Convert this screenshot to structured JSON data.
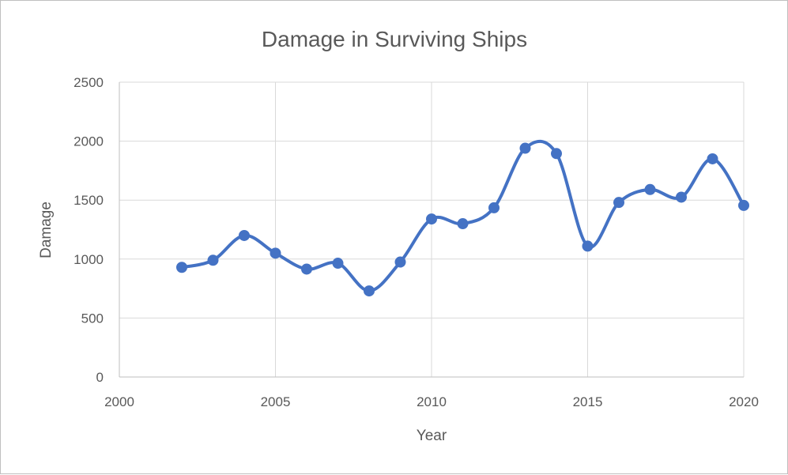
{
  "chart_data": {
    "type": "scatter",
    "title": "Damage in Surviving Ships",
    "xlabel": "Year",
    "ylabel": "Damage",
    "xlim": [
      2000,
      2020
    ],
    "ylim": [
      0,
      2500
    ],
    "xticks": [
      2000,
      2005,
      2010,
      2015,
      2020
    ],
    "yticks": [
      0,
      500,
      1000,
      1500,
      2000,
      2500
    ],
    "grid": true,
    "smooth_line": true,
    "series_color": "#4472c4",
    "x": [
      2002,
      2003,
      2004,
      2005,
      2006,
      2007,
      2008,
      2009,
      2010,
      2011,
      2012,
      2013,
      2014,
      2015,
      2016,
      2017,
      2018,
      2019,
      2020
    ],
    "y": [
      930,
      990,
      1200,
      1050,
      915,
      965,
      730,
      975,
      1340,
      1300,
      1435,
      1940,
      1895,
      1110,
      1480,
      1590,
      1525,
      1850,
      1455
    ]
  }
}
